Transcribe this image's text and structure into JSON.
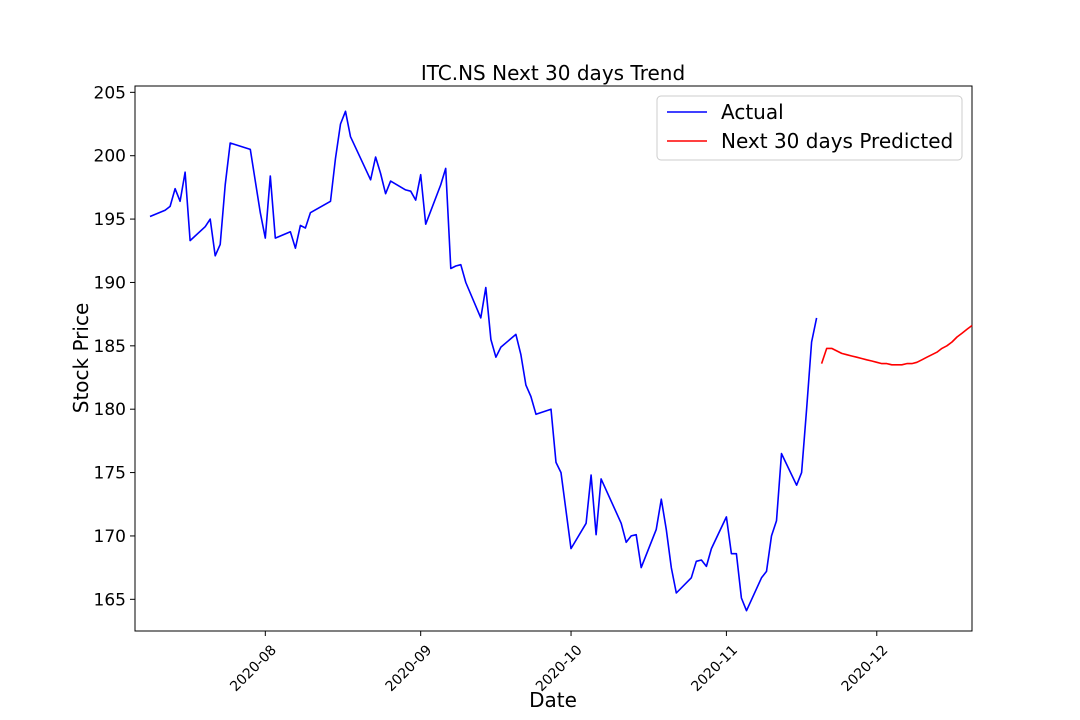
{
  "chart_data": {
    "type": "line",
    "title": "ITC.NS Next 30 days Trend",
    "xlabel": "Date",
    "ylabel": "Stock Price",
    "grid": false,
    "legend_placement": "top-right",
    "xlim": [
      "2020-07-06",
      "2020-12-20"
    ],
    "ylim": [
      162.5,
      205.5
    ],
    "x_ticks": [
      "2020-08",
      "2020-09",
      "2020-10",
      "2020-11",
      "2020-12"
    ],
    "y_ticks": [
      165,
      170,
      175,
      180,
      185,
      190,
      195,
      200,
      205
    ],
    "series": [
      {
        "name": "Actual",
        "color": "#0000ff",
        "points": [
          [
            "2020-07-09",
            195.2
          ],
          [
            "2020-07-12",
            195.7
          ],
          [
            "2020-07-13",
            196.0
          ],
          [
            "2020-07-14",
            197.4
          ],
          [
            "2020-07-15",
            196.4
          ],
          [
            "2020-07-16",
            198.7
          ],
          [
            "2020-07-17",
            193.3
          ],
          [
            "2020-07-20",
            194.4
          ],
          [
            "2020-07-21",
            195.0
          ],
          [
            "2020-07-22",
            192.1
          ],
          [
            "2020-07-23",
            193.0
          ],
          [
            "2020-07-24",
            197.7
          ],
          [
            "2020-07-25",
            201.0
          ],
          [
            "2020-07-29",
            200.5
          ],
          [
            "2020-07-31",
            195.5
          ],
          [
            "2020-08-01",
            193.5
          ],
          [
            "2020-08-02",
            198.4
          ],
          [
            "2020-08-03",
            193.5
          ],
          [
            "2020-08-06",
            194.0
          ],
          [
            "2020-08-07",
            192.7
          ],
          [
            "2020-08-08",
            194.5
          ],
          [
            "2020-08-09",
            194.3
          ],
          [
            "2020-08-10",
            195.5
          ],
          [
            "2020-08-14",
            196.4
          ],
          [
            "2020-08-15",
            199.8
          ],
          [
            "2020-08-16",
            202.5
          ],
          [
            "2020-08-17",
            203.5
          ],
          [
            "2020-08-18",
            201.5
          ],
          [
            "2020-08-22",
            198.1
          ],
          [
            "2020-08-23",
            199.9
          ],
          [
            "2020-08-24",
            198.6
          ],
          [
            "2020-08-25",
            197.0
          ],
          [
            "2020-08-26",
            198.0
          ],
          [
            "2020-08-29",
            197.3
          ],
          [
            "2020-08-30",
            197.2
          ],
          [
            "2020-08-31",
            196.5
          ],
          [
            "2020-09-01",
            198.5
          ],
          [
            "2020-09-02",
            194.6
          ],
          [
            "2020-09-05",
            197.7
          ],
          [
            "2020-09-06",
            199.0
          ],
          [
            "2020-09-07",
            191.1
          ],
          [
            "2020-09-08",
            191.3
          ],
          [
            "2020-09-09",
            191.4
          ],
          [
            "2020-09-10",
            190.0
          ],
          [
            "2020-09-13",
            187.2
          ],
          [
            "2020-09-14",
            189.6
          ],
          [
            "2020-09-15",
            185.5
          ],
          [
            "2020-09-16",
            184.1
          ],
          [
            "2020-09-17",
            184.9
          ],
          [
            "2020-09-20",
            185.9
          ],
          [
            "2020-09-21",
            184.3
          ],
          [
            "2020-09-22",
            181.9
          ],
          [
            "2020-09-23",
            181.0
          ],
          [
            "2020-09-24",
            179.6
          ],
          [
            "2020-09-27",
            180.0
          ],
          [
            "2020-09-28",
            175.8
          ],
          [
            "2020-09-29",
            175.0
          ],
          [
            "2020-09-30",
            172.0
          ],
          [
            "2020-10-01",
            169.0
          ],
          [
            "2020-10-04",
            171.0
          ],
          [
            "2020-10-05",
            174.8
          ],
          [
            "2020-10-06",
            170.1
          ],
          [
            "2020-10-07",
            174.5
          ],
          [
            "2020-10-11",
            171.0
          ],
          [
            "2020-10-12",
            169.5
          ],
          [
            "2020-10-13",
            170.0
          ],
          [
            "2020-10-14",
            170.1
          ],
          [
            "2020-10-15",
            167.5
          ],
          [
            "2020-10-18",
            170.5
          ],
          [
            "2020-10-19",
            172.9
          ],
          [
            "2020-10-20",
            170.5
          ],
          [
            "2020-10-21",
            167.5
          ],
          [
            "2020-10-22",
            165.5
          ],
          [
            "2020-10-25",
            166.7
          ],
          [
            "2020-10-26",
            168.0
          ],
          [
            "2020-10-27",
            168.1
          ],
          [
            "2020-10-28",
            167.6
          ],
          [
            "2020-10-29",
            169.0
          ],
          [
            "2020-11-01",
            171.5
          ],
          [
            "2020-11-02",
            168.6
          ],
          [
            "2020-11-03",
            168.6
          ],
          [
            "2020-11-04",
            165.1
          ],
          [
            "2020-11-05",
            164.1
          ],
          [
            "2020-11-08",
            166.7
          ],
          [
            "2020-11-09",
            167.2
          ],
          [
            "2020-11-10",
            170.0
          ],
          [
            "2020-11-11",
            171.2
          ],
          [
            "2020-11-12",
            176.5
          ],
          [
            "2020-11-15",
            174.0
          ],
          [
            "2020-11-16",
            175.0
          ],
          [
            "2020-11-17",
            180.0
          ],
          [
            "2020-11-18",
            185.3
          ],
          [
            "2020-11-19",
            187.2
          ]
        ]
      },
      {
        "name": "Next 30 days Predicted",
        "color": "#ff0000",
        "points": [
          [
            "2020-11-20",
            183.6
          ],
          [
            "2020-11-21",
            184.8
          ],
          [
            "2020-11-22",
            184.8
          ],
          [
            "2020-11-23",
            184.6
          ],
          [
            "2020-11-24",
            184.4
          ],
          [
            "2020-11-25",
            184.3
          ],
          [
            "2020-11-26",
            184.2
          ],
          [
            "2020-11-27",
            184.1
          ],
          [
            "2020-11-28",
            184.0
          ],
          [
            "2020-11-29",
            183.9
          ],
          [
            "2020-11-30",
            183.8
          ],
          [
            "2020-12-01",
            183.7
          ],
          [
            "2020-12-02",
            183.6
          ],
          [
            "2020-12-03",
            183.6
          ],
          [
            "2020-12-04",
            183.5
          ],
          [
            "2020-12-05",
            183.5
          ],
          [
            "2020-12-06",
            183.5
          ],
          [
            "2020-12-07",
            183.6
          ],
          [
            "2020-12-08",
            183.6
          ],
          [
            "2020-12-09",
            183.7
          ],
          [
            "2020-12-10",
            183.9
          ],
          [
            "2020-12-11",
            184.1
          ],
          [
            "2020-12-12",
            184.3
          ],
          [
            "2020-12-13",
            184.5
          ],
          [
            "2020-12-14",
            184.8
          ],
          [
            "2020-12-15",
            185.0
          ],
          [
            "2020-12-16",
            185.3
          ],
          [
            "2020-12-17",
            185.7
          ],
          [
            "2020-12-18",
            186.0
          ],
          [
            "2020-12-19",
            186.3
          ],
          [
            "2020-12-20",
            186.6
          ]
        ]
      }
    ]
  }
}
